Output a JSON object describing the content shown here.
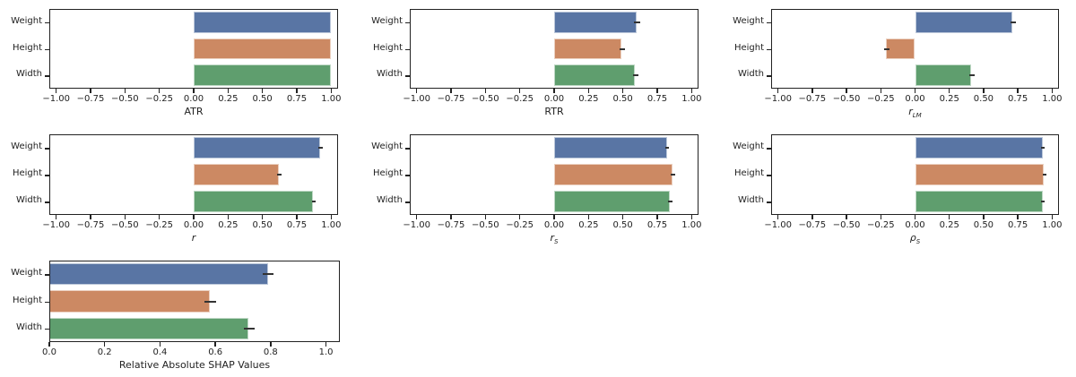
{
  "chart_data": [
    {
      "type": "bar",
      "orientation": "horizontal",
      "xlabel": "ATR",
      "categories": [
        "Weight",
        "Height",
        "Width"
      ],
      "values": [
        1.0,
        1.0,
        1.0
      ],
      "errors": [
        0,
        0,
        0
      ],
      "xlim": [
        -1.05,
        1.05
      ],
      "xticks": [
        "−1.00",
        "−0.75",
        "−0.50",
        "−0.25",
        "0.00",
        "0.25",
        "0.50",
        "0.75",
        "1.00"
      ]
    },
    {
      "type": "bar",
      "orientation": "horizontal",
      "xlabel": "RTR",
      "categories": [
        "Weight",
        "Height",
        "Width"
      ],
      "values": [
        0.6,
        0.49,
        0.59
      ],
      "errors": [
        0.01,
        0.01,
        0.01
      ],
      "xlim": [
        -1.05,
        1.05
      ],
      "xticks": [
        "−1.00",
        "−0.75",
        "−0.50",
        "−0.25",
        "0.00",
        "0.25",
        "0.50",
        "0.75",
        "1.00"
      ]
    },
    {
      "type": "bar",
      "orientation": "horizontal",
      "xlabel": "r_LM",
      "categories": [
        "Weight",
        "Height",
        "Width"
      ],
      "values": [
        0.71,
        -0.21,
        0.41
      ],
      "errors": [
        0.01,
        0.01,
        0.01
      ],
      "xlim": [
        -1.05,
        1.05
      ],
      "xticks": [
        "−1.00",
        "−0.75",
        "−0.50",
        "−0.25",
        "0.00",
        "0.25",
        "0.50",
        "0.75",
        "1.00"
      ]
    },
    {
      "type": "bar",
      "orientation": "horizontal",
      "xlabel": "r",
      "categories": [
        "Weight",
        "Height",
        "Width"
      ],
      "values": [
        0.92,
        0.62,
        0.87
      ],
      "errors": [
        0.005,
        0.005,
        0.005
      ],
      "xlim": [
        -1.05,
        1.05
      ],
      "xticks": [
        "−1.00",
        "−0.75",
        "−0.50",
        "−0.25",
        "0.00",
        "0.25",
        "0.50",
        "0.75",
        "1.00"
      ]
    },
    {
      "type": "bar",
      "orientation": "horizontal",
      "xlabel": "r_S",
      "categories": [
        "Weight",
        "Height",
        "Width"
      ],
      "values": [
        0.82,
        0.86,
        0.84
      ],
      "errors": [
        0.005,
        0.005,
        0.005
      ],
      "xlim": [
        -1.05,
        1.05
      ],
      "xticks": [
        "−1.00",
        "−0.75",
        "−0.50",
        "−0.25",
        "0.00",
        "0.25",
        "0.50",
        "0.75",
        "1.00"
      ]
    },
    {
      "type": "bar",
      "orientation": "horizontal",
      "xlabel": "ρ_S",
      "categories": [
        "Weight",
        "Height",
        "Width"
      ],
      "values": [
        0.93,
        0.94,
        0.93
      ],
      "errors": [
        0.003,
        0.003,
        0.003
      ],
      "xlim": [
        -1.05,
        1.05
      ],
      "xticks": [
        "−1.00",
        "−0.75",
        "−0.50",
        "−0.25",
        "0.00",
        "0.25",
        "0.50",
        "0.75",
        "1.00"
      ]
    },
    {
      "type": "bar",
      "orientation": "horizontal",
      "xlabel": "Relative Absolute SHAP Values",
      "categories": [
        "Weight",
        "Height",
        "Width"
      ],
      "values": [
        0.79,
        0.58,
        0.72
      ],
      "errors": [
        0.015,
        0.015,
        0.015
      ],
      "xlim": [
        0,
        1.05
      ],
      "xticks": [
        "0.0",
        "0.2",
        "0.4",
        "0.6",
        "0.8",
        "1.0"
      ]
    }
  ],
  "colors": {
    "Weight": "#5975A4",
    "Height": "#CC8963",
    "Width": "#5F9E6E"
  },
  "labels": {
    "xtitles": [
      "ATR",
      "RTR",
      "r",
      "LM",
      "r",
      "r",
      "S",
      "ρ",
      "S",
      "Relative Absolute SHAP Values"
    ],
    "categories": [
      "Weight",
      "Height",
      "Width"
    ]
  }
}
